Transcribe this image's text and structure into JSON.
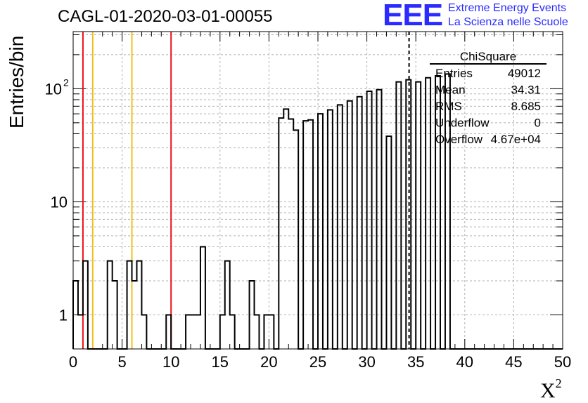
{
  "header": {
    "title": "CAGL-01-2020-03-01-00055",
    "logo_text": "EEE",
    "logo_line1": "Extreme Energy Events",
    "logo_line2": "La Scienza nelle Scuole",
    "logo_color": "#2b2bff"
  },
  "chart_data": {
    "type": "histogram",
    "title": "CAGL-01-2020-03-01-00055",
    "xlabel": "X",
    "xlabel_superscript": "2",
    "ylabel": "Entries/bin",
    "xlim": [
      0,
      50
    ],
    "ylim": [
      0.5,
      320
    ],
    "yscale": "log",
    "grid": true,
    "x_ticks": [
      "0",
      "5",
      "10",
      "15",
      "20",
      "25",
      "30",
      "35",
      "40",
      "45",
      "50"
    ],
    "y_ticks": [
      {
        "value": 1,
        "label": "1"
      },
      {
        "value": 10,
        "label": "10"
      },
      {
        "value": 100,
        "label": "10",
        "sup": "2"
      }
    ],
    "bin_width": 0.5,
    "bin_starts": [
      0.0,
      0.5,
      1.0,
      1.5,
      2.0,
      2.5,
      3.0,
      3.5,
      4.0,
      4.5,
      5.0,
      5.5,
      6.0,
      6.5,
      7.0,
      7.5,
      8.0,
      8.5,
      9.0,
      9.5,
      10.0,
      10.5,
      11.0,
      11.5,
      12.0,
      12.5,
      13.0,
      13.5,
      14.0,
      14.5,
      15.0,
      15.5,
      16.0,
      16.5,
      17.0,
      17.5,
      18.0,
      18.5,
      19.0,
      19.5,
      20.0,
      20.5,
      21.0,
      21.5,
      22.0,
      22.5,
      23.0,
      23.5,
      24.0,
      24.5,
      25.0,
      25.5,
      26.0,
      26.5,
      27.0,
      27.5,
      28.0,
      28.5,
      29.0,
      29.5,
      30.0,
      30.5,
      31.0,
      31.5,
      32.0,
      32.5,
      33.0,
      33.5,
      34.0,
      34.5,
      35.0,
      35.5,
      36.0,
      36.5,
      37.0,
      37.5,
      38.0,
      38.5,
      39.0,
      39.5,
      40.0,
      40.5,
      41.0,
      41.5,
      42.0,
      42.5,
      43.0,
      43.5,
      44.0,
      44.5,
      45.0,
      45.5,
      46.0,
      46.5,
      47.0,
      47.5,
      48.0,
      48.5,
      49.0,
      49.5
    ],
    "counts": [
      2,
      1,
      3,
      0,
      0,
      0,
      0,
      3,
      2,
      0,
      0,
      3,
      2,
      3,
      1,
      0,
      0,
      0,
      0,
      1,
      0,
      0,
      0,
      1,
      1,
      1,
      4,
      0,
      0,
      0,
      1,
      3,
      1,
      0,
      0,
      0,
      2,
      1,
      0,
      1,
      1,
      0,
      55,
      66,
      54,
      43,
      0,
      52,
      53,
      0,
      60,
      0,
      65,
      0,
      72,
      0,
      78,
      0,
      85,
      0,
      95,
      0,
      98,
      0,
      38,
      0,
      115,
      0,
      120,
      0,
      115,
      0,
      125,
      0,
      130,
      0,
      135,
      0,
      0,
      0,
      0,
      0,
      0,
      0,
      0,
      0,
      0,
      0,
      0,
      0,
      0,
      0,
      0,
      0,
      0,
      0,
      0,
      0,
      0,
      0
    ],
    "vertical_lines": [
      {
        "x": 1,
        "color": "#e8141a",
        "style": "solid"
      },
      {
        "x": 2,
        "color": "#f0c020",
        "style": "solid"
      },
      {
        "x": 6,
        "color": "#f0c020",
        "style": "solid"
      },
      {
        "x": 10,
        "color": "#e8141a",
        "style": "solid"
      },
      {
        "x": 34.31,
        "color": "#000000",
        "style": "dashed"
      }
    ],
    "stats_box": {
      "title": "ChiSquare",
      "rows": [
        {
          "label": "Entries",
          "value": "49012"
        },
        {
          "label": "Mean",
          "value": "34.31"
        },
        {
          "label": "RMS",
          "value": "8.685"
        },
        {
          "label": "Underflow",
          "value": "0"
        },
        {
          "label": "Overflow",
          "value": "4.67e+04"
        }
      ]
    }
  }
}
